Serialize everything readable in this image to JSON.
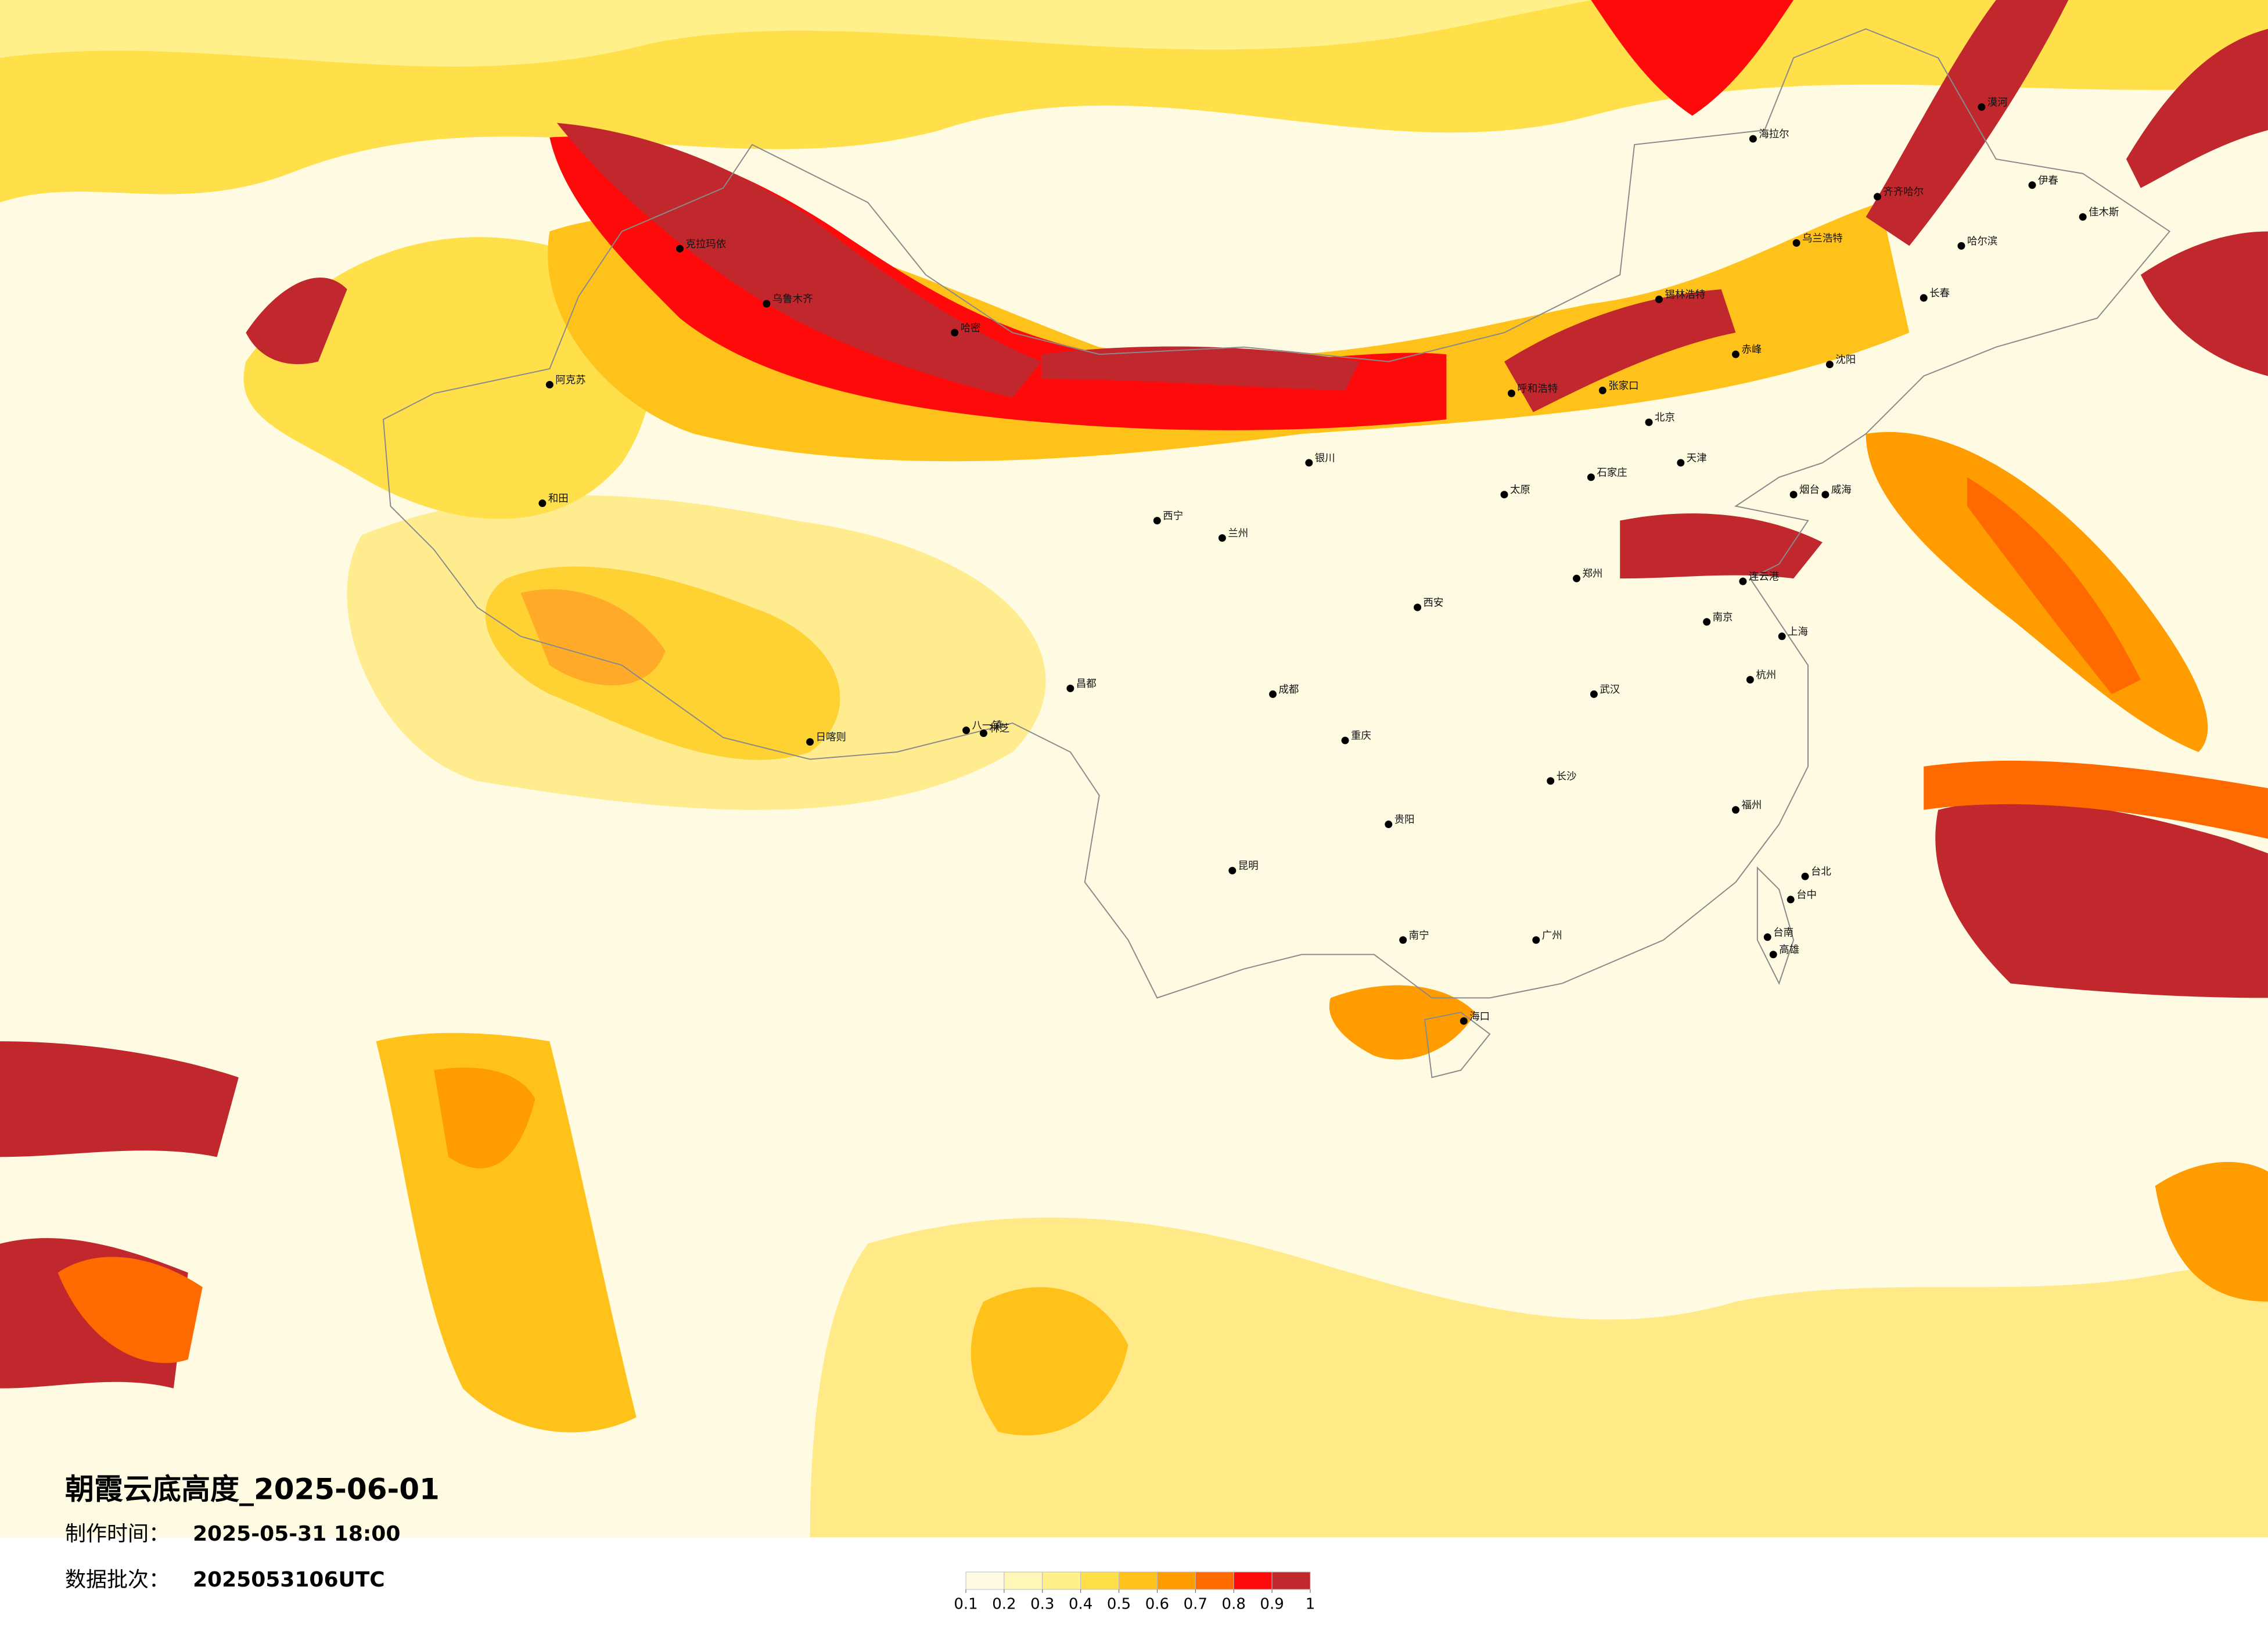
{
  "title": "朝霞云底高度_2025-06-01",
  "made_time_label": "制作时间：",
  "made_time": "2025-05-31 18:00",
  "batch_label": "数据批次：",
  "batch": "2025053106UTC",
  "colorbar": {
    "ticks": [
      0.1,
      0.2,
      0.3,
      0.4,
      0.5,
      0.6,
      0.7,
      0.8,
      0.9,
      1
    ],
    "colors": [
      "#fffbe3",
      "#fff6b8",
      "#fff08a",
      "#ffe04a",
      "#ffc21a",
      "#ff9c00",
      "#ff6a00",
      "#ff0a0a",
      "#c0282e"
    ]
  },
  "cities": [
    "克拉玛依",
    "乌鲁木齐",
    "哈密",
    "阿克苏",
    "和田",
    "日喀则",
    "八一镇",
    "林芝",
    "昌都",
    "西宁",
    "兰州",
    "银川",
    "呼和浩特",
    "张家口",
    "北京",
    "天津",
    "石家庄",
    "太原",
    "郑州",
    "西安",
    "成都",
    "重庆",
    "贵阳",
    "昆明",
    "南宁",
    "广州",
    "海口",
    "长沙",
    "武汉",
    "南京",
    "上海",
    "杭州",
    "福州",
    "台北",
    "台中",
    "台南",
    "高雄",
    "沈阳",
    "长春",
    "哈尔滨",
    "齐齐哈尔",
    "海拉尔",
    "漠河",
    "伊春",
    "佳木斯",
    "乌兰浩特",
    "锡林浩特",
    "赤峰",
    "烟台",
    "威海",
    "连云港"
  ]
}
